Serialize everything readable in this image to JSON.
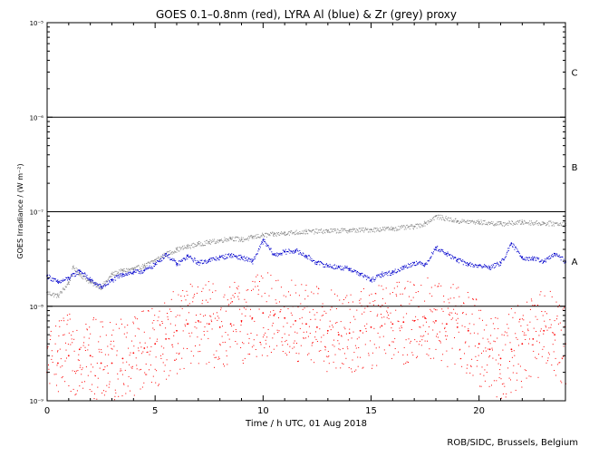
{
  "chart_data": {
    "type": "scatter",
    "title": "GOES 0.1–0.8nm (red), LYRA Al (blue) & Zr (grey) proxy",
    "xlabel": "Time / h UTC, 01 Aug 2018",
    "ylabel": "GOES Irradiance / (W m⁻²)",
    "xlim": [
      0,
      24
    ],
    "ylim": [
      1e-09,
      1e-05
    ],
    "yscale": "log",
    "x_ticks": [
      0,
      5,
      10,
      15,
      20
    ],
    "x_tick_labels": [
      "0",
      "5",
      "10",
      "15",
      "20"
    ],
    "y_ticks": [
      1e-09,
      1e-08,
      1e-07,
      1e-06,
      1e-05
    ],
    "y_tick_labels": [
      "10⁻⁹",
      "10⁻⁸",
      "10⁻⁷",
      "10⁻⁶",
      "10⁻⁵"
    ],
    "flare_class_lines": [
      1e-08,
      1e-07,
      1e-06
    ],
    "flare_class_labels": [
      {
        "label": "A",
        "y": 3e-08
      },
      {
        "label": "B",
        "y": 3e-07
      },
      {
        "label": "C",
        "y": 3e-06
      }
    ],
    "grid": false,
    "series": [
      {
        "name": "LYRA Zr proxy",
        "color": "#8c8c8c",
        "style": "dots",
        "x": [
          0,
          0.5,
          1,
          1.2,
          1.5,
          2,
          2.5,
          3,
          3.5,
          4,
          4.5,
          5,
          5.5,
          6,
          6.5,
          7,
          7.5,
          8,
          8.5,
          9,
          9.5,
          10,
          10.5,
          11,
          12,
          13,
          14,
          15,
          16,
          17,
          17.5,
          18,
          19,
          20,
          21,
          22,
          23,
          24
        ],
        "y": [
          1.4e-08,
          1.3e-08,
          1.8e-08,
          2.6e-08,
          2.2e-08,
          1.8e-08,
          1.6e-08,
          2.2e-08,
          2.4e-08,
          2.5e-08,
          2.7e-08,
          3.1e-08,
          3.6e-08,
          4e-08,
          4.3e-08,
          4.6e-08,
          4.8e-08,
          5e-08,
          5.3e-08,
          5.1e-08,
          5.4e-08,
          5.7e-08,
          5.8e-08,
          6e-08,
          6.2e-08,
          6.3e-08,
          6.4e-08,
          6.5e-08,
          6.7e-08,
          7e-08,
          7.6e-08,
          9e-08,
          8e-08,
          7.8e-08,
          7.5e-08,
          7.8e-08,
          7.6e-08,
          7.5e-08
        ]
      },
      {
        "name": "LYRA Al proxy",
        "color": "#0000cc",
        "style": "dots",
        "x": [
          0,
          0.5,
          1,
          1.5,
          2,
          2.5,
          3,
          3.5,
          4,
          4.5,
          5,
          5.5,
          6,
          6.5,
          7,
          7.5,
          8,
          8.5,
          9,
          9.5,
          10,
          10.5,
          11,
          11.5,
          12,
          12.5,
          13,
          13.5,
          14,
          14.5,
          15,
          15.5,
          16,
          16.5,
          17,
          17.5,
          18,
          18.5,
          19,
          19.5,
          20,
          20.5,
          21,
          21.5,
          22,
          22.5,
          23,
          23.5,
          24
        ],
        "y": [
          2.1e-08,
          1.8e-08,
          2e-08,
          2.4e-08,
          1.9e-08,
          1.6e-08,
          1.9e-08,
          2.2e-08,
          2.3e-08,
          2.4e-08,
          2.8e-08,
          3.6e-08,
          2.8e-08,
          3.4e-08,
          2.9e-08,
          3.1e-08,
          3.3e-08,
          3.5e-08,
          3.3e-08,
          3e-08,
          5e-08,
          3.5e-08,
          3.8e-08,
          3.9e-08,
          3.4e-08,
          2.9e-08,
          2.7e-08,
          2.6e-08,
          2.5e-08,
          2.2e-08,
          1.9e-08,
          2.2e-08,
          2.3e-08,
          2.6e-08,
          2.9e-08,
          2.8e-08,
          4.2e-08,
          3.6e-08,
          3.1e-08,
          2.8e-08,
          2.7e-08,
          2.6e-08,
          2.9e-08,
          4.6e-08,
          3.3e-08,
          3.2e-08,
          3e-08,
          3.6e-08,
          3e-08
        ]
      },
      {
        "name": "GOES 0.1–0.8nm",
        "color": "#ff0000",
        "style": "dots",
        "x": [
          0,
          0.5,
          1,
          1.5,
          2,
          2.5,
          3,
          3.5,
          4,
          4.5,
          5,
          5.5,
          6,
          6.5,
          7,
          7.5,
          8,
          8.5,
          9,
          9.5,
          10,
          10.5,
          11,
          11.5,
          12,
          12.5,
          13,
          13.5,
          14,
          14.5,
          15,
          15.5,
          16,
          16.5,
          17,
          17.5,
          18,
          18.5,
          19,
          19.5,
          20,
          20.5,
          21,
          21.5,
          22,
          22.5,
          23,
          23.5,
          24
        ],
        "y": [
          2e-09,
          2.5e-09,
          3e-09,
          3.5e-09,
          3e-09,
          2.5e-09,
          2.5e-09,
          2.8e-09,
          3.2e-09,
          3.6e-09,
          4e-09,
          4.5e-09,
          5.5e-09,
          6.5e-09,
          7e-09,
          6.5e-09,
          6e-09,
          6.5e-09,
          7e-09,
          7.5e-09,
          8.5e-09,
          8e-09,
          7.5e-09,
          7e-09,
          6.5e-09,
          6e-09,
          5.5e-09,
          5e-09,
          5.2e-09,
          5.5e-09,
          6e-09,
          6.2e-09,
          6.5e-09,
          6.8e-09,
          7e-09,
          7.5e-09,
          7e-09,
          6.5e-09,
          6e-09,
          5.5e-09,
          4e-09,
          3.5e-09,
          2.8e-09,
          3.5e-09,
          4e-09,
          4.5e-09,
          5.5e-09,
          5e-09,
          4e-09
        ]
      }
    ]
  },
  "credit": "ROB/SIDC, Brussels, Belgium"
}
